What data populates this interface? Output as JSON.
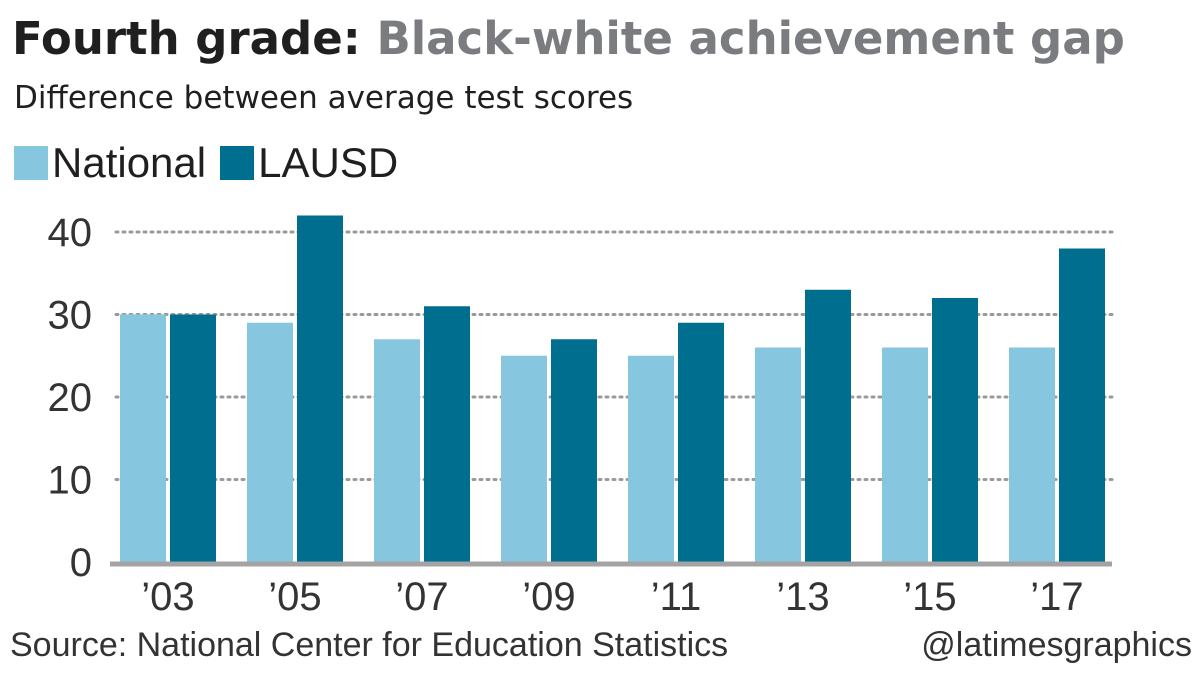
{
  "header": {
    "title_lead": "Fourth grade:",
    "title_rest": "Black-white achievement gap",
    "subtitle": "Difference between average test scores"
  },
  "footer": {
    "source": "Source: National Center for Education Statistics",
    "credit": "@latimesgraphics"
  },
  "colors": {
    "national": "#86c6df",
    "lausd": "#006e8f",
    "grid": "#9a9a9a",
    "baseline": "#a3a3a3"
  },
  "chart_data": {
    "type": "bar",
    "title": "Fourth grade: Black-white achievement gap",
    "subtitle": "Difference between average test scores",
    "categories": [
      "’03",
      "’05",
      "’07",
      "’09",
      "’11",
      "’13",
      "’15",
      "’17"
    ],
    "series": [
      {
        "name": "National",
        "color": "#86c6df",
        "values": [
          30,
          29,
          27,
          25,
          25,
          26,
          26,
          26
        ]
      },
      {
        "name": "LAUSD",
        "color": "#006e8f",
        "values": [
          30,
          42,
          31,
          27,
          29,
          33,
          32,
          38
        ]
      }
    ],
    "yticks": [
      0,
      10,
      20,
      30,
      40
    ],
    "ylim": [
      0,
      40
    ],
    "grid": "dotted-horizontal",
    "legend_position": "top-left"
  }
}
